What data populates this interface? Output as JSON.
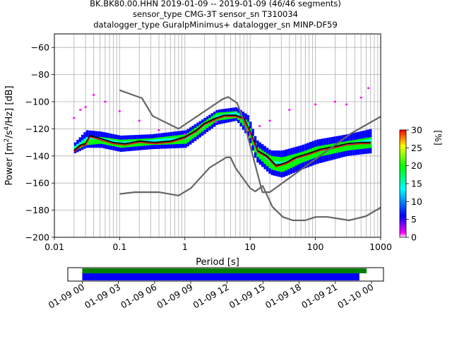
{
  "title_lines": [
    "BK.BK80.00.HHN   2019-01-09 -- 2019-01-09  (46/46 segments)",
    "sensor_type CMG-3T sensor_sn T310034",
    "datalogger_type GuralpMinimus+ datalogger_sn MINP-DF59"
  ],
  "chart_data": [
    {
      "type": "heatmap",
      "name": "ppsd",
      "xlabel": "Period [s]",
      "ylabel": "Power [m²/s⁴/Hz] [dB]",
      "xscale": "log",
      "xlim": [
        0.01,
        1000
      ],
      "ylim": [
        -200,
        -50
      ],
      "x_ticks": [
        0.01,
        0.1,
        1,
        10,
        100,
        1000
      ],
      "x_tick_labels": [
        "0.01",
        "0.1",
        "1",
        "10",
        "100",
        "1000"
      ],
      "y_ticks": [
        -200,
        -180,
        -160,
        -140,
        -120,
        -100,
        -80,
        -60
      ],
      "y_tick_labels": [
        "−200",
        "−180",
        "−160",
        "−140",
        "−120",
        "−100",
        "−80",
        "−60"
      ],
      "grid": true,
      "colorbar": {
        "label": "[%]",
        "range": [
          0,
          30
        ],
        "ticks": [
          0,
          5,
          10,
          15,
          20,
          25,
          30
        ],
        "tick_labels": [
          "0",
          "5",
          "10",
          "15",
          "20",
          "25",
          "30"
        ],
        "colors": [
          "#ffffff",
          "#ff00ff",
          "#0000ff",
          "#00ffff",
          "#00ff00",
          "#ffff00",
          "#ff0000"
        ]
      },
      "series": [
        {
          "name": "mean",
          "color": "#000000",
          "x": [
            0.02,
            0.025,
            0.03,
            0.035,
            0.05,
            0.08,
            0.12,
            0.2,
            0.35,
            0.6,
            1.0,
            1.5,
            2.0,
            3.0,
            4.0,
            6.0,
            8.0,
            10,
            13,
            18,
            25,
            35,
            50,
            80,
            120,
            200,
            300,
            500,
            700
          ],
          "y": [
            -136,
            -132,
            -131,
            -125,
            -127,
            -130,
            -131,
            -129,
            -130,
            -129,
            -126,
            -121,
            -116,
            -112,
            -110,
            -110,
            -112,
            -122,
            -136,
            -140,
            -147,
            -145,
            -141,
            -138,
            -135,
            -133,
            -131,
            -130,
            -130
          ]
        },
        {
          "name": "mode",
          "color": "#ff0000",
          "x": [
            0.02,
            0.025,
            0.03,
            0.035,
            0.05,
            0.08,
            0.12,
            0.2,
            0.35,
            0.6,
            1.0,
            1.5,
            2.0,
            3.0,
            4.0,
            6.0,
            8.0,
            10,
            13,
            18,
            25,
            35,
            50,
            80,
            120,
            200,
            300,
            500,
            700
          ],
          "y": [
            -137,
            -133,
            -132,
            -126,
            -128,
            -131,
            -132,
            -130,
            -131,
            -130,
            -127,
            -122,
            -117,
            -113,
            -111,
            -111,
            -113,
            -123,
            -137,
            -141,
            -148,
            -146,
            -142,
            -139,
            -136,
            -134,
            -132,
            -131,
            -131
          ]
        },
        {
          "name": "noise_model_high",
          "color": "#666666",
          "x": [
            0.1,
            0.22,
            0.32,
            0.8,
            3.8,
            4.6,
            6.3,
            7.9,
            15.4,
            20,
            354.8,
            1000
          ],
          "y": [
            -91.5,
            -97.4,
            -110.5,
            -120.0,
            -98.0,
            -96.5,
            -101.0,
            -113.5,
            -166.7,
            -166.7,
            -123.3,
            -111.0
          ]
        },
        {
          "name": "noise_model_low",
          "color": "#666666",
          "x": [
            0.1,
            0.17,
            0.4,
            0.8,
            1.24,
            2.4,
            4.3,
            5.0,
            6.0,
            10.0,
            12.0,
            15.6,
            21.9,
            31.6,
            45.0,
            70.0,
            101.0,
            154.0,
            328.0,
            600.0,
            1000.0
          ],
          "y": [
            -168.0,
            -166.7,
            -166.7,
            -169.2,
            -163.7,
            -148.6,
            -141.1,
            -141.1,
            -149.0,
            -163.8,
            -166.2,
            -162.1,
            -177.5,
            -185.0,
            -187.5,
            -187.5,
            -185.0,
            -185.0,
            -187.5,
            -184.4,
            -178.0
          ]
        }
      ],
      "density_bands": [
        {
          "color": "#0000ff",
          "x": [
            0.02,
            0.03,
            0.05,
            0.1,
            0.3,
            1,
            3,
            6,
            9,
            12,
            20,
            30,
            60,
            100,
            300,
            700
          ],
          "y_min": [
            -138,
            -134,
            -134,
            -137,
            -135,
            -134,
            -117,
            -114,
            -126,
            -144,
            -154,
            -156,
            -150,
            -146,
            -140,
            -138
          ],
          "y_max": [
            -130,
            -121,
            -122,
            -125,
            -124,
            -121,
            -106,
            -104,
            -110,
            -128,
            -136,
            -136,
            -132,
            -128,
            -124,
            -120
          ]
        },
        {
          "color": "#00ff00",
          "x": [
            0.02,
            0.03,
            0.05,
            0.1,
            0.3,
            1,
            3,
            6,
            9,
            12,
            20,
            30,
            60,
            100,
            300,
            700
          ],
          "y_min": [
            -136,
            -132,
            -131,
            -134,
            -132,
            -131,
            -114,
            -112,
            -122,
            -140,
            -150,
            -152,
            -145,
            -141,
            -136,
            -134
          ],
          "y_max": [
            -133,
            -126,
            -126,
            -128,
            -127,
            -124,
            -108,
            -107,
            -115,
            -133,
            -140,
            -141,
            -137,
            -133,
            -129,
            -126
          ]
        }
      ],
      "outliers": {
        "color": "#ff00ff",
        "x": [
          0.02,
          0.025,
          0.03,
          0.04,
          0.06,
          0.1,
          0.2,
          0.4,
          1,
          3,
          5,
          8,
          14,
          20,
          40,
          100,
          200,
          300,
          500,
          650
        ],
        "y": [
          -112,
          -106,
          -104,
          -95,
          -100,
          -107,
          -114,
          -121,
          -124,
          -115,
          -110,
          -112,
          -118,
          -114,
          -106,
          -102,
          -100,
          -102,
          -97,
          -90
        ]
      }
    },
    {
      "type": "bar",
      "name": "timeline",
      "x_ticks": [
        "2019-01-09 00:00",
        "2019-01-09 03:00",
        "2019-01-09 06:00",
        "2019-01-09 09:00",
        "2019-01-09 12:00",
        "2019-01-09 15:00",
        "2019-01-09 18:00",
        "2019-01-09 21:00",
        "2019-01-10 00:00"
      ],
      "x_tick_labels": [
        "01-09 00",
        "01-09 03",
        "01-09 06",
        "01-09 09",
        "01-09 12",
        "01-09 15",
        "01-09 18",
        "01-09 21",
        "01-10 00"
      ],
      "xlim_hours": [
        -1.2,
        25.0
      ],
      "bars": [
        {
          "color": "#008000",
          "start_hour": 0.0,
          "end_hour": 23.6
        },
        {
          "color": "#0000ff",
          "start_hour": 0.0,
          "end_hour": 23.0
        }
      ]
    }
  ]
}
